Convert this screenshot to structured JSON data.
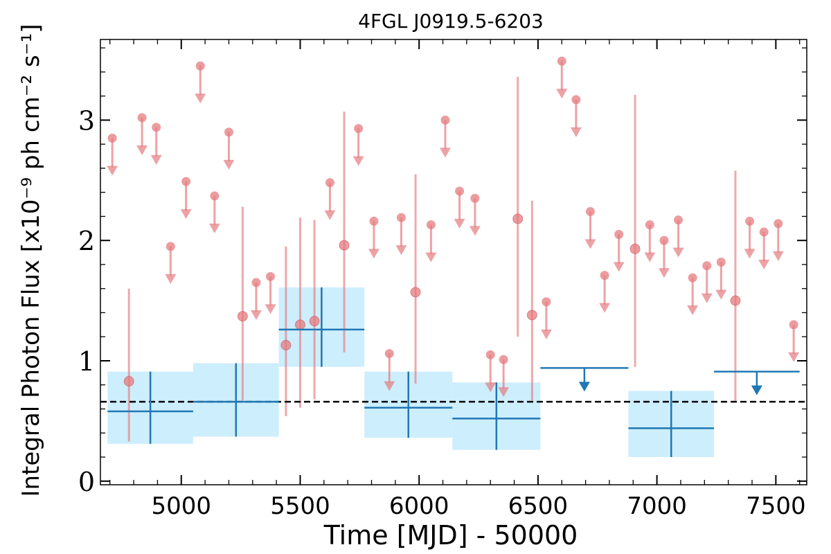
{
  "chart_data": {
    "type": "scatter",
    "title": "4FGL J0919.5-6203",
    "xlabel": "Time [MJD] - 50000",
    "ylabel": "Integral Photon Flux [x10⁻⁹ ph cm⁻² s⁻¹]",
    "xlim": [
      4660,
      7630
    ],
    "ylim": [
      -0.03,
      3.67
    ],
    "x_ticks": [
      5000,
      5500,
      6000,
      6500,
      7000,
      7500
    ],
    "y_ticks": [
      0,
      1,
      2,
      3
    ],
    "reference_line": 0.66,
    "colors": {
      "short_bins": "#e47b7f",
      "long_bins": "#1f77b4",
      "long_bins_band": "#cdeefc",
      "reference": "#000000"
    },
    "series": [
      {
        "style": "detection",
        "points": [
          {
            "x": 4780,
            "y": 0.83,
            "ylo": 0.33,
            "yhi": 1.6
          },
          {
            "x": 5258,
            "y": 1.37,
            "ylo": 0.67,
            "yhi": 2.28
          },
          {
            "x": 5440,
            "y": 1.13,
            "ylo": 0.54,
            "yhi": 1.95
          },
          {
            "x": 5500,
            "y": 1.3,
            "ylo": 0.61,
            "yhi": 2.19
          },
          {
            "x": 5560,
            "y": 1.33,
            "ylo": 0.68,
            "yhi": 2.17
          },
          {
            "x": 5685,
            "y": 1.96,
            "ylo": 1.07,
            "yhi": 3.07
          },
          {
            "x": 5985,
            "y": 1.57,
            "ylo": 0.81,
            "yhi": 2.55
          },
          {
            "x": 6415,
            "y": 2.18,
            "ylo": 1.2,
            "yhi": 3.36
          },
          {
            "x": 6475,
            "y": 1.38,
            "ylo": 0.67,
            "yhi": 2.33
          },
          {
            "x": 6908,
            "y": 1.93,
            "ylo": 0.95,
            "yhi": 3.21
          },
          {
            "x": 7330,
            "y": 1.5,
            "ylo": 0.66,
            "yhi": 2.58
          }
        ]
      },
      {
        "style": "upper-limit",
        "points": [
          {
            "x": 4710,
            "y": 2.85
          },
          {
            "x": 4835,
            "y": 3.02
          },
          {
            "x": 4895,
            "y": 2.94
          },
          {
            "x": 4955,
            "y": 1.95
          },
          {
            "x": 5020,
            "y": 2.49
          },
          {
            "x": 5080,
            "y": 3.45
          },
          {
            "x": 5140,
            "y": 2.37
          },
          {
            "x": 5200,
            "y": 2.9
          },
          {
            "x": 5315,
            "y": 1.65
          },
          {
            "x": 5375,
            "y": 1.7
          },
          {
            "x": 5625,
            "y": 2.48
          },
          {
            "x": 5745,
            "y": 2.93
          },
          {
            "x": 5810,
            "y": 2.16
          },
          {
            "x": 5875,
            "y": 1.06
          },
          {
            "x": 5925,
            "y": 2.19
          },
          {
            "x": 6050,
            "y": 2.13
          },
          {
            "x": 6110,
            "y": 3.0
          },
          {
            "x": 6170,
            "y": 2.41
          },
          {
            "x": 6235,
            "y": 2.35
          },
          {
            "x": 6300,
            "y": 1.05
          },
          {
            "x": 6355,
            "y": 1.01
          },
          {
            "x": 6535,
            "y": 1.49
          },
          {
            "x": 6600,
            "y": 3.49
          },
          {
            "x": 6660,
            "y": 3.17
          },
          {
            "x": 6720,
            "y": 2.24
          },
          {
            "x": 6780,
            "y": 1.71
          },
          {
            "x": 6840,
            "y": 2.05
          },
          {
            "x": 6970,
            "y": 2.13
          },
          {
            "x": 7030,
            "y": 2.0
          },
          {
            "x": 7090,
            "y": 2.17
          },
          {
            "x": 7150,
            "y": 1.69
          },
          {
            "x": 7210,
            "y": 1.79
          },
          {
            "x": 7270,
            "y": 1.82
          },
          {
            "x": 7390,
            "y": 2.16
          },
          {
            "x": 7450,
            "y": 2.07
          },
          {
            "x": 7510,
            "y": 2.14
          },
          {
            "x": 7575,
            "y": 1.3
          }
        ]
      },
      {
        "style": "binned",
        "points": [
          {
            "x0": 4690,
            "x1": 5050,
            "y": 0.58,
            "ylo": 0.31,
            "yhi": 0.91
          },
          {
            "x0": 5050,
            "x1": 5410,
            "y": 0.66,
            "ylo": 0.37,
            "yhi": 0.98
          },
          {
            "x0": 5410,
            "x1": 5770,
            "y": 1.26,
            "ylo": 0.95,
            "yhi": 1.61
          },
          {
            "x0": 5770,
            "x1": 6140,
            "y": 0.61,
            "ylo": 0.36,
            "yhi": 0.91
          },
          {
            "x0": 6140,
            "x1": 6510,
            "y": 0.52,
            "ylo": 0.26,
            "yhi": 0.82
          },
          {
            "x0": 6880,
            "x1": 7240,
            "y": 0.44,
            "ylo": 0.2,
            "yhi": 0.75
          }
        ]
      },
      {
        "style": "binned-upper-limit",
        "points": [
          {
            "x0": 6510,
            "x1": 6880,
            "y": 0.94
          },
          {
            "x0": 7240,
            "x1": 7600,
            "y": 0.91
          }
        ]
      }
    ]
  }
}
